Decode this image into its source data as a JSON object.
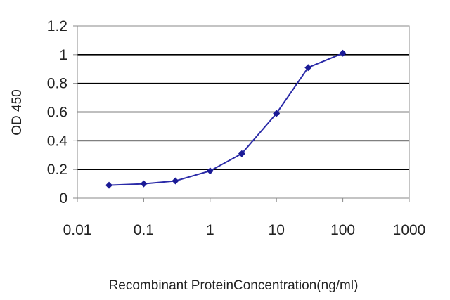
{
  "chart_data": {
    "type": "line",
    "title": "",
    "xlabel": "Recombinant ProteinConcentration(ng/ml)",
    "ylabel": "OD 450",
    "x_scale": "log",
    "xlim": [
      0.01,
      1000
    ],
    "ylim": [
      0,
      1.2
    ],
    "x_ticks": [
      0.01,
      0.1,
      1,
      10,
      100,
      1000
    ],
    "x_tick_labels": [
      "0.01",
      "0.1",
      "1",
      "10",
      "100",
      "1000"
    ],
    "y_ticks": [
      0,
      0.2,
      0.4,
      0.6,
      0.8,
      1,
      1.2
    ],
    "y_tick_labels": [
      "0",
      "0.2",
      "0.4",
      "0.6",
      "0.8",
      "1",
      "1.2"
    ],
    "grid": "horizontal",
    "legend": "none",
    "series": [
      {
        "x": [
          0.03,
          0.1,
          0.3,
          1,
          3,
          10,
          30,
          100
        ],
        "y": [
          0.09,
          0.1,
          0.12,
          0.19,
          0.31,
          0.59,
          0.91,
          1.01
        ]
      }
    ],
    "colors": {
      "line": "#2b2ba8",
      "marker": "#1a1a96",
      "gridline": "#000000",
      "frame": "#888888"
    }
  }
}
